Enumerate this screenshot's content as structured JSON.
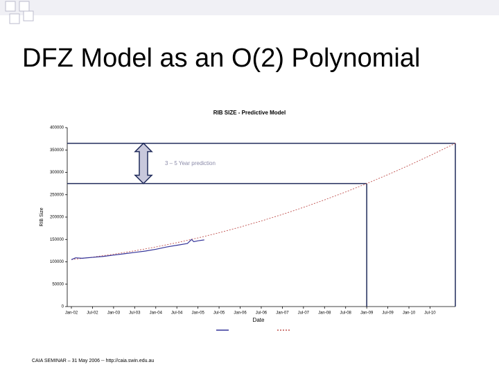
{
  "slide_title": "DFZ Model as an O(2) Polynomial",
  "footer": "CAIA SEMINAR – 31 May 2006 -- http://caia.swin.edu.au",
  "chart_data": {
    "type": "line",
    "title": "RIB SIZE - Predictive Model",
    "x_label": "Date",
    "y_label": "RIB Size",
    "xlim": [
      2002,
      2011.1
    ],
    "ylim": [
      0,
      400000
    ],
    "xticks": [
      {
        "value": 2002,
        "label": "Jan-02"
      },
      {
        "value": 2002.5,
        "label": "Jul-02"
      },
      {
        "value": 2003,
        "label": "Jan-03"
      },
      {
        "value": 2003.5,
        "label": "Jul-03"
      },
      {
        "value": 2004,
        "label": "Jan-04"
      },
      {
        "value": 2004.5,
        "label": "Jul-04"
      },
      {
        "value": 2005,
        "label": "Jan-05"
      },
      {
        "value": 2005.5,
        "label": "Jul-05"
      },
      {
        "value": 2006,
        "label": "Jan-06"
      },
      {
        "value": 2006.5,
        "label": "Jul-06"
      },
      {
        "value": 2007,
        "label": "Jan-07"
      },
      {
        "value": 2007.5,
        "label": "Jul-07"
      },
      {
        "value": 2008,
        "label": "Jan-08"
      },
      {
        "value": 2008.5,
        "label": "Jul-08"
      },
      {
        "value": 2009,
        "label": "Jan-09"
      },
      {
        "value": 2009.5,
        "label": "Jul-09"
      },
      {
        "value": 2010,
        "label": "Jan-10"
      },
      {
        "value": 2010.5,
        "label": "Jul-10"
      }
    ],
    "yticks": [
      0,
      50000,
      100000,
      150000,
      200000,
      250000,
      300000,
      350000,
      400000
    ],
    "series": [
      {
        "color": "#333399",
        "dashed": false,
        "x": [
          2002,
          2002.1,
          2002.25,
          2002.5,
          2002.75,
          2003,
          2003.25,
          2003.5,
          2003.75,
          2004,
          2004.25,
          2004.5,
          2004.75,
          2004.85,
          2004.9,
          2005,
          2005.15
        ],
        "values": [
          105000,
          109000,
          108000,
          110000,
          112000,
          115000,
          118000,
          121000,
          124000,
          128000,
          133000,
          137000,
          141000,
          150000,
          145000,
          147000,
          149000
        ]
      },
      {
        "color": "#c0504d",
        "dashed": true,
        "x": [
          2002,
          2002.5,
          2003,
          2003.5,
          2004,
          2004.5,
          2005,
          2005.5,
          2006,
          2006.5,
          2007,
          2007.5,
          2008,
          2008.5,
          2009,
          2009.5,
          2010,
          2010.5,
          2011,
          2011.1
        ],
        "values": [
          105000,
          110500,
          117000,
          124600,
          133200,
          142800,
          153400,
          165000,
          177700,
          191300,
          206000,
          221700,
          238500,
          256200,
          275000,
          294800,
          315600,
          337500,
          360300,
          365000
        ]
      }
    ],
    "annotation": {
      "text": "3 – 5 Year prediction",
      "levels": [
        275000,
        365000
      ],
      "x_marks": [
        2009,
        2011.1
      ]
    }
  }
}
